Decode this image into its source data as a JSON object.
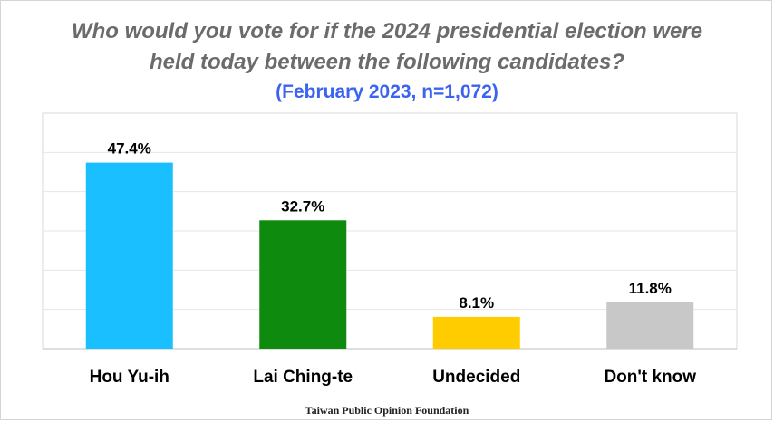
{
  "title_line1": "Who would you vote for if the 2024 presidential election were",
  "title_line2": "held today between the following candidates?",
  "subtitle": "(February 2023, n=1,072)",
  "footer": "Taiwan Public Opinion Foundation",
  "chart_data": {
    "type": "bar",
    "categories": [
      "Hou Yu-ih",
      "Lai Ching-te",
      "Undecided",
      "Don't know"
    ],
    "values": [
      47.4,
      32.7,
      8.1,
      11.8
    ],
    "value_labels": [
      "47.4%",
      "32.7%",
      "8.1%",
      "11.8%"
    ],
    "colors": [
      "#19bfff",
      "#0e8a0e",
      "#ffcc00",
      "#c8c8c8"
    ],
    "ylim": [
      0,
      60
    ],
    "grid": true,
    "xlabel": "",
    "ylabel": ""
  }
}
